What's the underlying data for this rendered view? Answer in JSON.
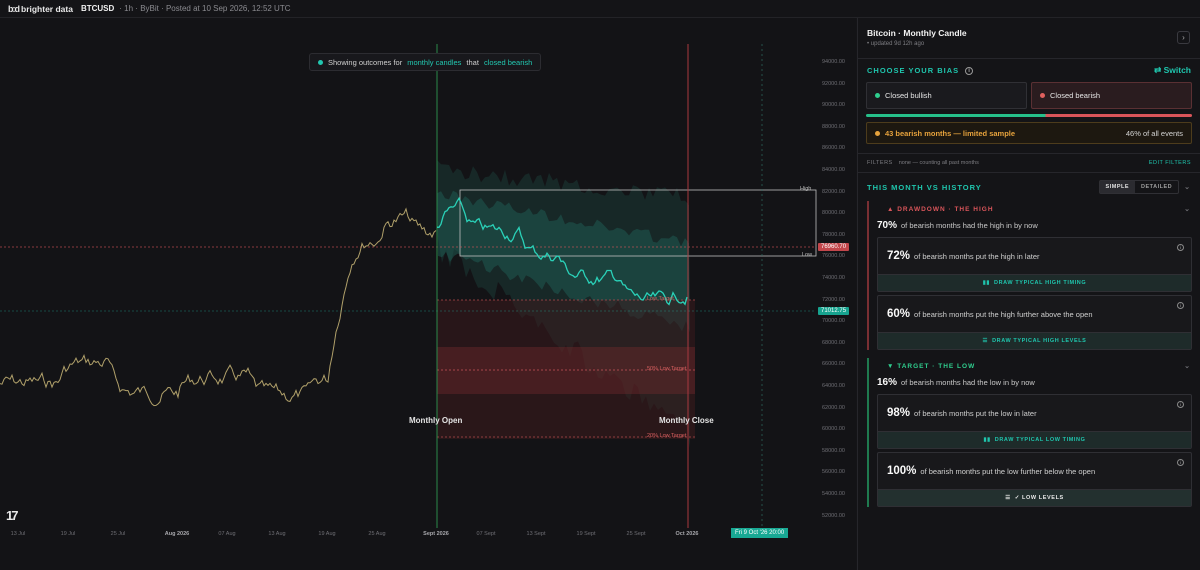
{
  "topbar": {
    "logo_mark": "b:d",
    "brand": "brighter data",
    "symbol": "BTCUSD",
    "meta": "· 1h · ByBit · Posted at 10 Sep 2026, 12:52 UTC"
  },
  "chart": {
    "banner_prefix": "Showing outcomes for",
    "banner_hl1": "monthly candles",
    "banner_mid": "that",
    "banner_hl2": "closed bearish",
    "price_axis": [
      "94000.00",
      "92000.00",
      "90000.00",
      "88000.00",
      "86000.00",
      "84000.00",
      "82000.00",
      "80000.00",
      "78000.00",
      "76000.00",
      "74000.00",
      "72000.00",
      "70000.00",
      "68000.00",
      "66000.00",
      "64000.00",
      "62000.00",
      "60000.00",
      "58000.00",
      "56000.00",
      "54000.00",
      "52000.00"
    ],
    "date_axis": [
      {
        "t": "13 Jul",
        "b": false
      },
      {
        "t": "19 Jul",
        "b": false
      },
      {
        "t": "25 Jul",
        "b": false
      },
      {
        "t": "Aug 2026",
        "b": true
      },
      {
        "t": "07 Aug",
        "b": false
      },
      {
        "t": "13 Aug",
        "b": false
      },
      {
        "t": "19 Aug",
        "b": false
      },
      {
        "t": "25 Aug",
        "b": false
      },
      {
        "t": "Sept 2026",
        "b": true
      },
      {
        "t": "07 Sept",
        "b": false
      },
      {
        "t": "13 Sept",
        "b": false
      },
      {
        "t": "19 Sept",
        "b": false
      },
      {
        "t": "25 Sept",
        "b": false
      },
      {
        "t": "Oct 2026",
        "b": true
      }
    ],
    "monthly_open_label": "Monthly Open",
    "monthly_close_label": "Monthly Close",
    "high_label": "High",
    "low_label": "Low",
    "target_top_label": "Low Target",
    "target_50_label": "50% Low Target",
    "target_20_label": "20% Low Target",
    "open_price_tag": "76960.70",
    "current_price_tag": "71012.75",
    "crosshair_date": "Fri 9 Oct '26 20:00",
    "tv_logo": "17",
    "colors": {
      "teal": "#22c7b0",
      "red": "#d9555a",
      "green_line": "#2b8a4a",
      "candle_up": "#2f9e6e",
      "candle_down": "#c65b52"
    }
  },
  "panel": {
    "title": "Bitcoin · Monthly Candle",
    "updated": "• updated 9d 12h ago",
    "expand_icon": "chevron-right-icon",
    "bias": {
      "header": "CHOOSE YOUR BIAS",
      "switch_label": "⇄ Switch",
      "bullish": "Closed bullish",
      "bearish": "Closed bearish",
      "split_bullish_fraction": 0.55,
      "warning": "43 bearish months — limited sample",
      "pct_of_events": "46% of all events"
    },
    "filters": {
      "label": "FILTERS",
      "value": "none — counting all past months",
      "edit": "EDIT FILTERS"
    },
    "history": {
      "header": "THIS MONTH VS HISTORY",
      "mode_simple": "SIMPLE",
      "mode_detailed": "DETAILED",
      "drawdown": {
        "header": "▲ DRAWDOWN · THE HIGH",
        "stat_pct": "70%",
        "stat_text": "of bearish months had the high in by now",
        "card1_pct": "72%",
        "card1_text": "of bearish months put the high in later",
        "card1_btn": "DRAW TYPICAL HIGH TIMING",
        "card2_pct": "60%",
        "card2_text": "of bearish months put the high further above the open",
        "card2_btn": "DRAW TYPICAL HIGH LEVELS"
      },
      "target": {
        "header": "▼ TARGET · THE LOW",
        "stat_pct": "16%",
        "stat_text": "of bearish months had the low in by now",
        "card1_pct": "98%",
        "card1_text": "of bearish months put the low in later",
        "card1_btn": "DRAW TYPICAL LOW TIMING",
        "card2_pct": "100%",
        "card2_text": "of bearish months put the low further below the open",
        "card2_btn": "✓ LOW LEVELS"
      }
    }
  }
}
